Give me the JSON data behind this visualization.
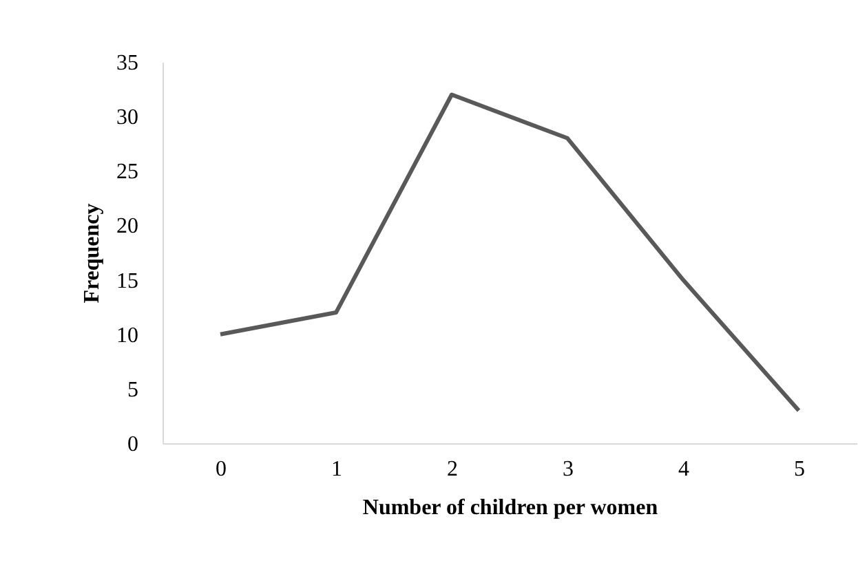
{
  "chart_data": {
    "type": "line",
    "xlabel": "Number of children per women",
    "ylabel": "Frequency",
    "categories": [
      "0",
      "1",
      "2",
      "3",
      "4",
      "5"
    ],
    "series": [
      {
        "color": "#595959",
        "values": [
          10,
          12,
          32,
          28,
          15,
          3
        ]
      }
    ],
    "ylim": [
      0,
      35
    ],
    "yticks": [
      0,
      5,
      10,
      15,
      20,
      25,
      30,
      35
    ],
    "grid": false,
    "legend": false,
    "marker": "none",
    "line_style": "solid"
  }
}
